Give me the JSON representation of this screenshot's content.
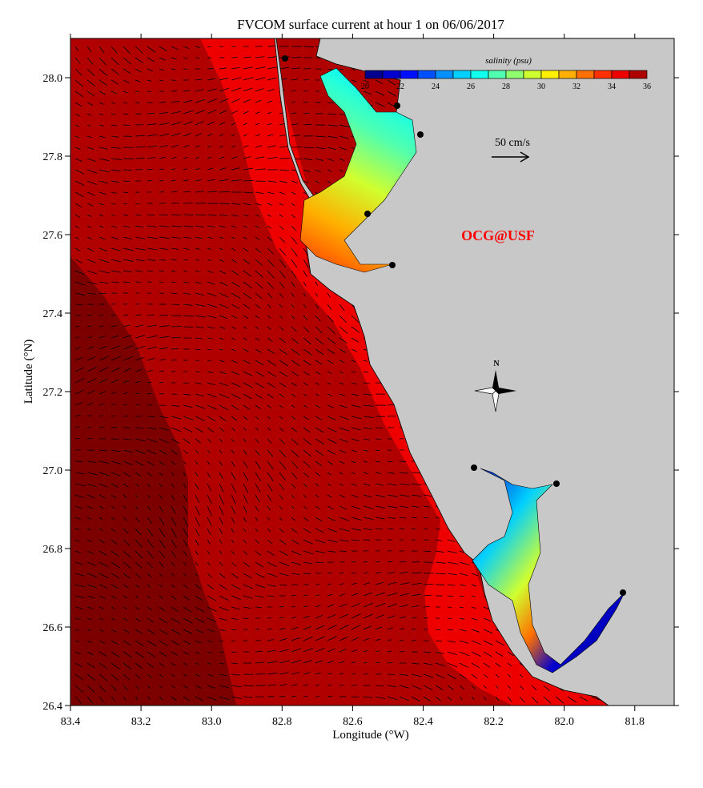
{
  "title": "FVCOM surface current at hour 1 on 06/06/2017",
  "xlabel": "Longitude (°W)",
  "ylabel": "Latitude (°N)",
  "x_ticks": [
    "83.4",
    "83.2",
    "83.0",
    "82.8",
    "82.6",
    "82.4",
    "82.2",
    "82.0",
    "81.8"
  ],
  "y_ticks": [
    "28.0",
    "27.8",
    "27.6",
    "27.4",
    "27.2",
    "27.0",
    "26.8",
    "26.6",
    "26.4"
  ],
  "colorbar": {
    "title": "salinity (psu)",
    "ticks": [
      "20",
      "22",
      "24",
      "26",
      "28",
      "30",
      "32",
      "34",
      "36"
    ],
    "colors": [
      "#00008f",
      "#0000cf",
      "#0010ff",
      "#0050ff",
      "#0090ff",
      "#00d0ff",
      "#10ffef",
      "#50ffaf",
      "#90ff6f",
      "#d0ff2f",
      "#ffef00",
      "#ffaf00",
      "#ff7000",
      "#ff3000",
      "#ef0000",
      "#af0000"
    ]
  },
  "scale_arrow": {
    "label": "50 cm/s"
  },
  "watermark": "OCG@USF",
  "north_arrow": {
    "label": "N"
  },
  "colors": {
    "land": "#c8c8c8",
    "offshore_deep": "#7d0000",
    "offshore_mid": "#b10000",
    "nearshore": "#ee0000",
    "bay_mouth": "#ff4a00",
    "watermark": "#ff0000"
  }
}
